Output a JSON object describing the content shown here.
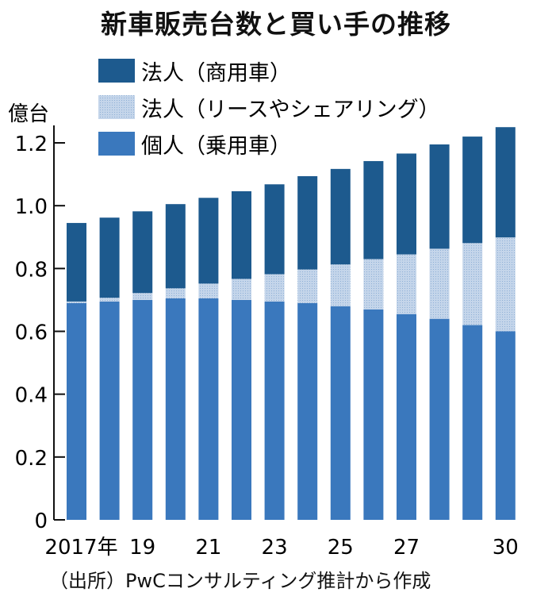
{
  "chart_data": {
    "type": "bar",
    "stacked": true,
    "title": "新車販売台数と買い手の推移",
    "ylabel": "億台",
    "ylim": [
      0,
      1.2
    ],
    "yticks": [
      "0",
      "0.2",
      "0.4",
      "0.6",
      "0.8",
      "1.0",
      "1.2"
    ],
    "categories": [
      "2017",
      "2018",
      "2019",
      "2020",
      "2021",
      "2022",
      "2023",
      "2024",
      "2025",
      "2026",
      "2027",
      "2028",
      "2029",
      "2030"
    ],
    "xtick_labels": [
      "2017年",
      "",
      "19",
      "",
      "21",
      "",
      "23",
      "",
      "25",
      "",
      "27",
      "",
      "",
      "30"
    ],
    "legend_position": "top-left",
    "series": [
      {
        "name": "個人（乗用車）",
        "color": "#3a78bd",
        "values": [
          0.69,
          0.695,
          0.7,
          0.705,
          0.705,
          0.7,
          0.695,
          0.69,
          0.68,
          0.67,
          0.655,
          0.64,
          0.62,
          0.6
        ]
      },
      {
        "name": "法人（リースやシェアリング）",
        "color": "#b3c9e3",
        "values": [
          0.005,
          0.012,
          0.022,
          0.032,
          0.047,
          0.067,
          0.087,
          0.107,
          0.133,
          0.16,
          0.19,
          0.223,
          0.261,
          0.299
        ]
      },
      {
        "name": "法人（商用車）",
        "color": "#1d5a8e",
        "values": [
          0.25,
          0.255,
          0.26,
          0.268,
          0.273,
          0.279,
          0.286,
          0.297,
          0.304,
          0.312,
          0.321,
          0.332,
          0.339,
          0.351
        ]
      }
    ],
    "source": "（出所）PwCコンサルティング推計から作成"
  }
}
